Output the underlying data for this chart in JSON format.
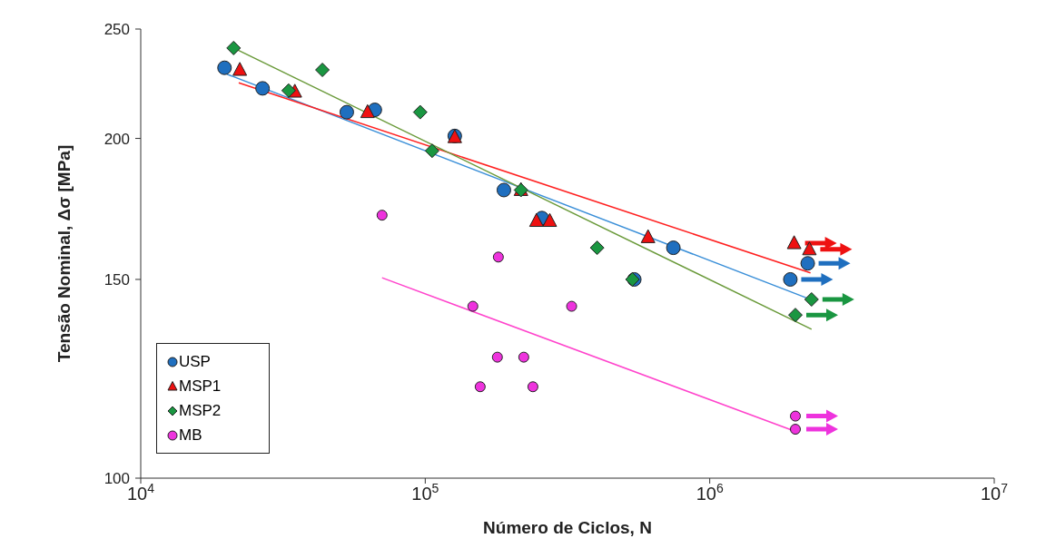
{
  "chart_data": {
    "type": "scatter",
    "xlabel": "Número de Ciclos, N",
    "ylabel": "Tensão Nominal, Δσ [MPa]",
    "log": "xy",
    "xlim": [
      10000,
      10000000
    ],
    "xticks": [
      {
        "value": 10000,
        "label": "10$^{4}$"
      },
      {
        "value": 100000,
        "label": "10$^{5}$"
      },
      {
        "value": 1000000,
        "label": "10$^{6}$"
      },
      {
        "value": 10000000,
        "label": "10$^{7}$"
      }
    ],
    "ylim": [
      100,
      250
    ],
    "yticks": [
      100,
      150,
      200,
      250
    ],
    "legend": "bottom left",
    "series": [
      {
        "name": "USP",
        "marker": "circle",
        "color": "#1f6fbf",
        "x": [
          19700,
          26800,
          53000,
          66500,
          127000,
          189000,
          257000,
          543000,
          745000,
          1920000,
          2210000
        ],
        "values": [
          231,
          221.5,
          211,
          212,
          201,
          180,
          170,
          150,
          160,
          150,
          155
        ]
      },
      {
        "name": "MSP1",
        "marker": "triangle",
        "color": "#ee1111",
        "x": [
          22300,
          34800,
          62700,
          127000,
          217000,
          246000,
          274000,
          607000,
          1980000,
          2240000
        ],
        "values": [
          230,
          220,
          211,
          200.5,
          180,
          169,
          169,
          163.5,
          161.5,
          159.5
        ]
      },
      {
        "name": "MSP2",
        "marker": "diamond",
        "color": "#1a9641",
        "x": [
          21200,
          43500,
          33100,
          96000,
          105700,
          217000,
          402000,
          535000,
          2000000,
          2280000
        ],
        "values": [
          240.5,
          230,
          220.5,
          211,
          195,
          180,
          160,
          150,
          139.5,
          144
        ]
      },
      {
        "name": "MB",
        "marker": "circle",
        "color": "#ee33dd",
        "x": [
          70500,
          180700,
          147000,
          327000,
          179300,
          222000,
          156000,
          239000,
          2000000,
          2000000
        ],
        "values": [
          171,
          157,
          142,
          142,
          128,
          128,
          120.5,
          120.5,
          113.5,
          110.5
        ]
      },
      {
        "type": "line",
        "marker": "none",
        "color": "#3a8fd8",
        "x": [
          20100,
          2180000
        ],
        "values": [
          228,
          144.5
        ]
      },
      {
        "type": "line",
        "marker": "none",
        "color": "#ff2020",
        "x": [
          22100,
          2260000
        ],
        "values": [
          224,
          152
        ]
      },
      {
        "type": "line",
        "marker": "none",
        "color": "#6a9a3a",
        "x": [
          21200,
          2280000
        ],
        "values": [
          240.5,
          135.5
        ]
      },
      {
        "type": "line",
        "marker": "none",
        "color": "#ff44cc",
        "x": [
          70500,
          2000000
        ],
        "values": [
          150.5,
          110
        ]
      }
    ]
  }
}
